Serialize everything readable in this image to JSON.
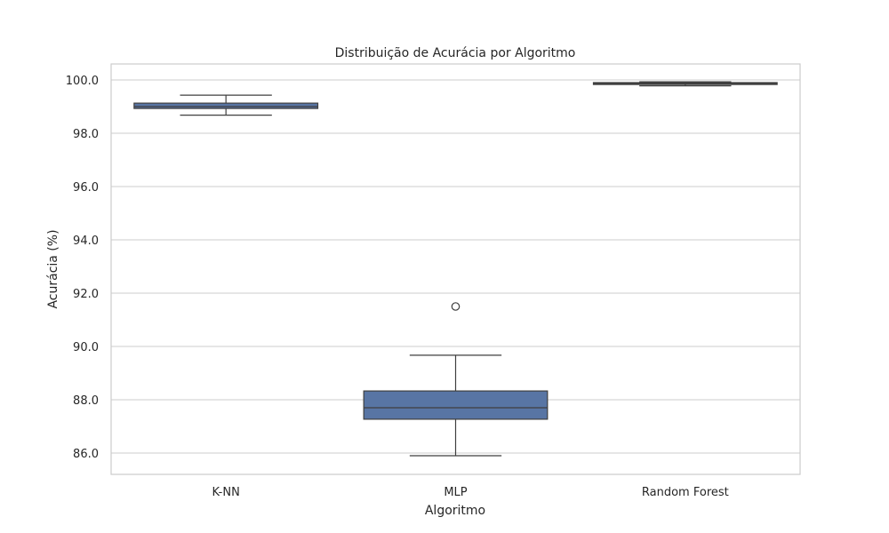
{
  "chart_data": {
    "type": "box",
    "title": "Distribuição de Acurácia por Algoritmo",
    "xlabel": "Algoritmo",
    "ylabel": "Acurácia (%)",
    "ylim": [
      85.2,
      100.6
    ],
    "yticks": [
      86.0,
      88.0,
      90.0,
      92.0,
      94.0,
      96.0,
      98.0,
      100.0
    ],
    "ytick_labels": [
      "86.0",
      "88.0",
      "90.0",
      "92.0",
      "94.0",
      "96.0",
      "98.0",
      "100.0"
    ],
    "grid": "horizontal",
    "colors": {
      "box": "#5875a4",
      "line": "#3f3f3f",
      "grid": "#cccccc",
      "frame": "#cccccc"
    },
    "categories": [
      "K-NN",
      "MLP",
      "Random Forest"
    ],
    "series": [
      {
        "category": "K-NN",
        "whisker_low": 98.68,
        "q1": 98.93,
        "median": 99.0,
        "q3": 99.13,
        "whisker_high": 99.43,
        "outliers": []
      },
      {
        "category": "MLP",
        "whisker_low": 85.9,
        "q1": 87.27,
        "median": 87.7,
        "q3": 88.33,
        "whisker_high": 89.67,
        "outliers": [
          91.5
        ]
      },
      {
        "category": "Random Forest",
        "whisker_low": 99.78,
        "q1": 99.83,
        "median": 99.87,
        "q3": 99.9,
        "whisker_high": 99.93,
        "outliers": []
      }
    ]
  }
}
